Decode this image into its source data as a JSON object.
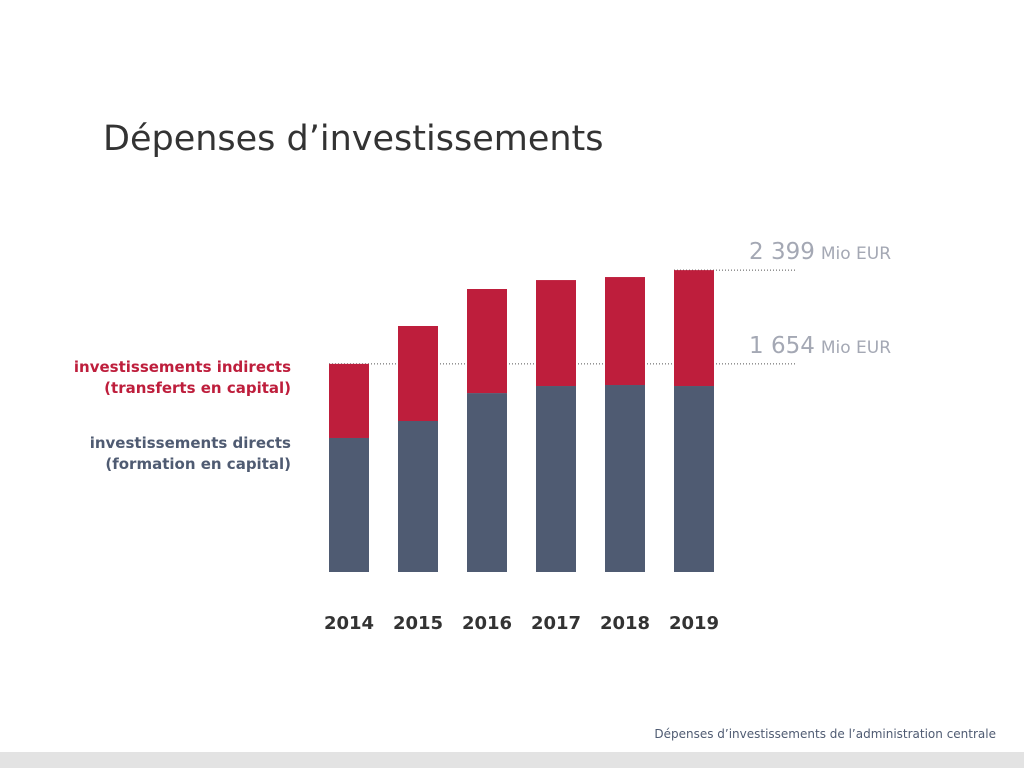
{
  "chart_data": {
    "type": "stacked_bar",
    "title": "Dépenses d’investissements",
    "caption": "Dépenses d’investissements de l’administration centrale",
    "categories": [
      "2014",
      "2015",
      "2016",
      "2017",
      "2018",
      "2019"
    ],
    "series": [
      {
        "name": "investissements directs\n(formation en capital)",
        "color": "#4f5b72",
        "values": [
          1065,
          1200,
          1422,
          1478,
          1486,
          1478
        ]
      },
      {
        "name": "investissements indirects\n(transferts en capital)",
        "color": "#be1e3c",
        "values": [
          589,
          755,
          827,
          842,
          858,
          921
        ]
      }
    ],
    "ylim": [
      0,
      2400
    ],
    "annotations": [
      {
        "value": 2399,
        "label": "2 399",
        "unit": "Mio EUR"
      },
      {
        "value": 1654,
        "label": "1 654",
        "unit": "Mio EUR"
      }
    ]
  }
}
